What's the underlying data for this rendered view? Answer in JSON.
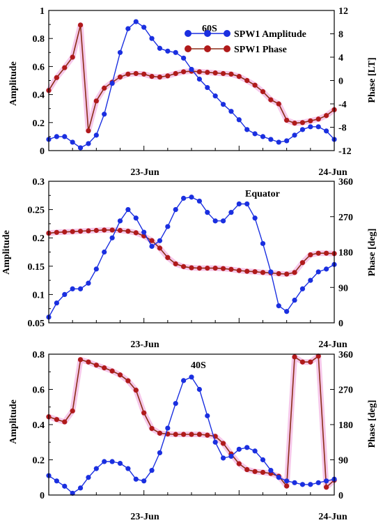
{
  "colors": {
    "amplitude": "#1a2fe0",
    "phase": "#b01a1a",
    "phase_line": "#8b2d16",
    "phase_halo": "#f6c8ea"
  },
  "legend": {
    "amplitude_label": "SPW1 Amplitude",
    "phase_label": "SPW1 Phase"
  },
  "chart_data": [
    {
      "type": "line",
      "panel_label": "60S",
      "xlabel_ticks": [
        "23-Jun",
        "24-Jun"
      ],
      "x_range_hours": [
        0,
        36
      ],
      "y_left": {
        "label": "Amplitude",
        "range": [
          0,
          1
        ],
        "ticks": [
          "0",
          "0.2",
          "0.4",
          "0.6",
          "0.8",
          "1"
        ]
      },
      "y_right": {
        "label": "Phase [LT]",
        "range": [
          -12,
          12
        ],
        "ticks": [
          "-12",
          "-8",
          "-4",
          "0",
          "4",
          "8",
          "12"
        ]
      },
      "legend_position": "top-right",
      "series": [
        {
          "name": "SPW1 Amplitude",
          "axis": "left",
          "x": [
            0,
            1,
            2,
            3,
            4,
            5,
            6,
            7,
            8,
            9,
            10,
            11,
            12,
            13,
            14,
            15,
            16,
            17,
            18,
            19,
            20,
            21,
            22,
            23,
            24,
            25,
            26,
            27,
            28,
            29,
            30,
            31,
            32,
            33,
            34,
            35,
            36
          ],
          "y": [
            0.08,
            0.1,
            0.1,
            0.06,
            0.02,
            0.05,
            0.11,
            0.26,
            0.48,
            0.7,
            0.87,
            0.92,
            0.88,
            0.8,
            0.73,
            0.71,
            0.7,
            0.66,
            0.58,
            0.51,
            0.45,
            0.39,
            0.33,
            0.28,
            0.22,
            0.15,
            0.12,
            0.1,
            0.08,
            0.06,
            0.07,
            0.11,
            0.15,
            0.17,
            0.17,
            0.14,
            0.08
          ]
        },
        {
          "name": "SPW1 Phase",
          "axis": "right",
          "x": [
            0,
            1,
            2,
            3,
            4,
            5,
            6,
            7,
            8,
            9,
            10,
            11,
            12,
            13,
            14,
            15,
            16,
            17,
            18,
            19,
            20,
            21,
            22,
            23,
            24,
            25,
            26,
            27,
            28,
            29,
            30,
            31,
            32,
            33,
            34,
            35,
            36
          ],
          "y": [
            -1.7,
            0.5,
            2.2,
            4,
            9.5,
            -8.6,
            -3.5,
            -1.3,
            -0.3,
            0.6,
            1.1,
            1.2,
            1.1,
            0.7,
            0.6,
            0.8,
            1.2,
            1.5,
            1.6,
            1.5,
            1.4,
            1.3,
            1.2,
            1.1,
            0.7,
            0,
            -0.8,
            -1.9,
            -3.3,
            -4,
            -6.8,
            -7.3,
            -7.2,
            -6.9,
            -6.6,
            -6,
            -5
          ]
        }
      ]
    },
    {
      "type": "line",
      "panel_label": "Equator",
      "xlabel_ticks": [
        "23-Jun",
        "24-Jun"
      ],
      "x_range_hours": [
        0,
        36
      ],
      "y_left": {
        "label": "Amplitude",
        "range": [
          0.05,
          0.3
        ],
        "ticks": [
          "0.05",
          "0.1",
          "0.15",
          "0.2",
          "0.25",
          "0.3"
        ]
      },
      "y_right": {
        "label": "Phase [deg]",
        "range": [
          0,
          360
        ],
        "ticks": [
          "0",
          "90",
          "180",
          "270",
          "360"
        ]
      },
      "series": [
        {
          "name": "SPW1 Amplitude",
          "axis": "left",
          "x": [
            0,
            1,
            2,
            3,
            4,
            5,
            6,
            7,
            8,
            9,
            10,
            11,
            12,
            13,
            14,
            15,
            16,
            17,
            18,
            19,
            20,
            21,
            22,
            23,
            24,
            25,
            26,
            27,
            28,
            29,
            30,
            31,
            32,
            33,
            34,
            35,
            36
          ],
          "y": [
            0.06,
            0.085,
            0.1,
            0.11,
            0.11,
            0.12,
            0.145,
            0.175,
            0.2,
            0.23,
            0.25,
            0.235,
            0.21,
            0.185,
            0.195,
            0.22,
            0.25,
            0.27,
            0.272,
            0.265,
            0.245,
            0.23,
            0.23,
            0.245,
            0.26,
            0.26,
            0.235,
            0.19,
            0.14,
            0.08,
            0.07,
            0.09,
            0.11,
            0.125,
            0.14,
            0.145,
            0.153
          ]
        },
        {
          "name": "SPW1 Phase",
          "axis": "right",
          "x": [
            0,
            1,
            2,
            3,
            4,
            5,
            6,
            7,
            8,
            9,
            10,
            11,
            12,
            13,
            14,
            15,
            16,
            17,
            18,
            19,
            20,
            21,
            22,
            23,
            24,
            25,
            26,
            27,
            28,
            29,
            30,
            31,
            32,
            33,
            34,
            35,
            36
          ],
          "y": [
            228,
            230,
            231,
            232,
            233,
            234,
            235,
            236,
            236,
            235,
            233,
            229,
            221,
            209,
            190,
            166,
            150,
            143,
            140,
            139,
            139,
            139,
            138,
            136,
            133,
            131,
            130,
            128,
            127,
            125,
            124,
            128,
            153,
            173,
            177,
            177,
            176
          ]
        }
      ]
    },
    {
      "type": "line",
      "panel_label": "40S",
      "xlabel_ticks": [
        "23-Jun",
        "24-Jun"
      ],
      "x_range_hours": [
        0,
        36
      ],
      "y_left": {
        "label": "Amplitude",
        "range": [
          0,
          0.8
        ],
        "ticks": [
          "0",
          "0.2",
          "0.4",
          "0.6",
          "0.8"
        ]
      },
      "y_right": {
        "label": "Phase [deg]",
        "range": [
          0,
          360
        ],
        "ticks": [
          "0",
          "90",
          "180",
          "270",
          "360"
        ]
      },
      "series": [
        {
          "name": "SPW1 Amplitude",
          "axis": "left",
          "x": [
            0,
            1,
            2,
            3,
            4,
            5,
            6,
            7,
            8,
            9,
            10,
            11,
            12,
            13,
            14,
            15,
            16,
            17,
            18,
            19,
            20,
            21,
            22,
            23,
            24,
            25,
            26,
            27,
            28,
            29,
            30,
            31,
            32,
            33,
            34,
            35,
            36
          ],
          "y": [
            0.11,
            0.08,
            0.05,
            0.01,
            0.04,
            0.1,
            0.15,
            0.19,
            0.19,
            0.18,
            0.15,
            0.09,
            0.08,
            0.14,
            0.24,
            0.38,
            0.52,
            0.65,
            0.67,
            0.6,
            0.45,
            0.3,
            0.21,
            0.22,
            0.26,
            0.27,
            0.25,
            0.2,
            0.14,
            0.1,
            0.08,
            0.07,
            0.06,
            0.06,
            0.07,
            0.08,
            0.09
          ]
        },
        {
          "name": "SPW1 Phase",
          "axis": "right",
          "x": [
            0,
            1,
            2,
            3,
            4,
            5,
            6,
            7,
            8,
            9,
            10,
            11,
            12,
            13,
            14,
            15,
            16,
            17,
            18,
            19,
            20,
            21,
            22,
            23,
            24,
            25,
            26,
            27,
            28,
            29,
            30,
            31,
            32,
            33,
            34,
            35,
            36
          ],
          "y": [
            200,
            193,
            187,
            215,
            346,
            340,
            332,
            325,
            317,
            307,
            292,
            268,
            210,
            170,
            158,
            156,
            155,
            155,
            155,
            155,
            153,
            150,
            132,
            105,
            80,
            65,
            60,
            58,
            55,
            48,
            23,
            353,
            340,
            340,
            355,
            20,
            38
          ]
        }
      ]
    }
  ]
}
